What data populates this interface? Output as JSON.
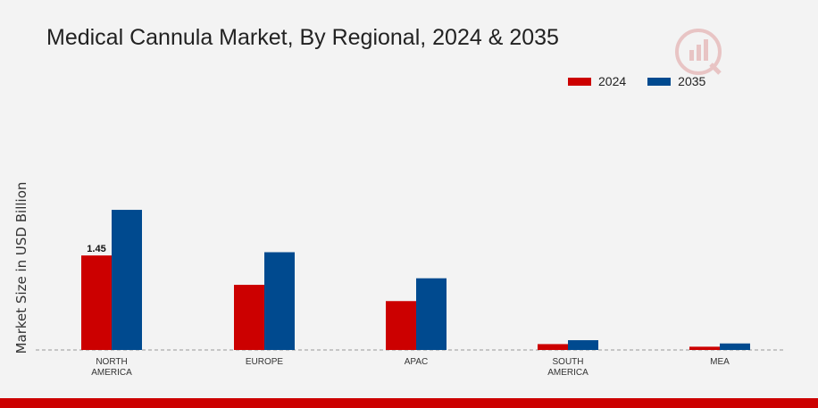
{
  "chart_data": {
    "type": "bar",
    "title": "Medical Cannula Market, By Regional, 2024 & 2035",
    "ylabel": "Market Size in USD Billion",
    "xlabel": "",
    "categories": [
      "NORTH AMERICA",
      "EUROPE",
      "APAC",
      "SOUTH AMERICA",
      "MEA"
    ],
    "category_lines": [
      [
        "NORTH",
        "AMERICA"
      ],
      [
        "EUROPE"
      ],
      [
        "APAC"
      ],
      [
        "SOUTH",
        "AMERICA"
      ],
      [
        "MEA"
      ]
    ],
    "series": [
      {
        "name": "2024",
        "color": "#cc0000",
        "values": [
          1.45,
          1.0,
          0.75,
          0.09,
          0.05
        ]
      },
      {
        "name": "2035",
        "color": "#004a8f",
        "values": [
          2.15,
          1.5,
          1.1,
          0.15,
          0.1
        ]
      }
    ],
    "data_labels": [
      {
        "series": 0,
        "index": 0,
        "text": "1.45"
      }
    ],
    "ylim": [
      0,
      3.5
    ],
    "legend_position": "top-right",
    "grid": false,
    "baseline": "dashed"
  },
  "legend": {
    "items": [
      "2024",
      "2035"
    ],
    "colors": [
      "#cc0000",
      "#004a8f"
    ]
  },
  "branding": {
    "logo_icon": "market-research-logo-icon"
  }
}
